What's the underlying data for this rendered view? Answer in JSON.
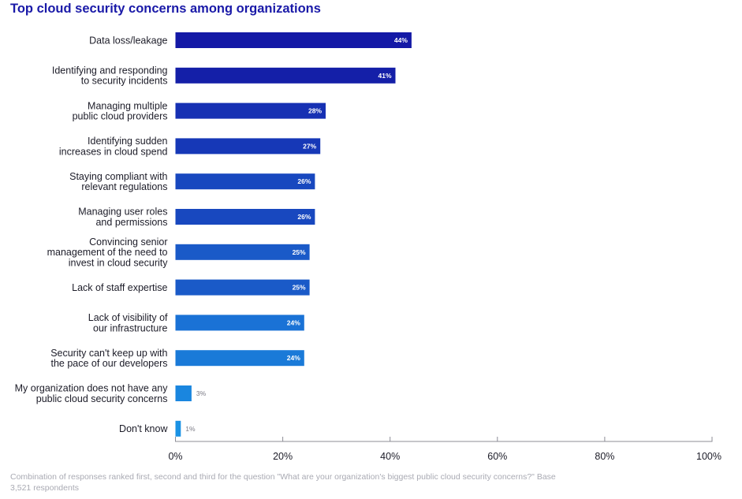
{
  "chart_data": {
    "type": "bar",
    "orientation": "horizontal",
    "title": "Top cloud security concerns among organizations",
    "categories": [
      "Data loss/leakage",
      "Identifying and responding\nto security incidents",
      "Managing multiple\npublic cloud providers",
      "Identifying sudden\nincreases in cloud spend",
      "Staying compliant with\nrelevant regulations",
      "Managing user roles\nand permissions",
      "Convincing senior\nmanagement of the need to\ninvest in cloud security",
      "Lack of staff expertise",
      "Lack of visibility of\nour infrastructure",
      "Security can't keep up with\nthe pace of our developers",
      "My organization does not have any\npublic cloud security concerns",
      "Don't know"
    ],
    "values": [
      44,
      41,
      28,
      27,
      26,
      26,
      25,
      25,
      24,
      24,
      3,
      1
    ],
    "value_labels": [
      "44%",
      "41%",
      "28%",
      "27%",
      "26%",
      "26%",
      "25%",
      "25%",
      "24%",
      "24%",
      "3%",
      "1%"
    ],
    "colors": [
      "#1419a6",
      "#141fa8",
      "#1630b3",
      "#1638b7",
      "#1848bf",
      "#1848bf",
      "#1a5ac8",
      "#1a5ac8",
      "#1a72d6",
      "#1a7ad8",
      "#1a86df",
      "#1a92e4"
    ],
    "xlim": [
      0,
      100
    ],
    "xticks": [
      0,
      20,
      40,
      60,
      80,
      100
    ],
    "xtick_labels": [
      "0%",
      "20%",
      "40%",
      "60%",
      "80%",
      "100%"
    ],
    "xlabel": "",
    "ylabel": "",
    "grid": false,
    "footnote": "Combination of responses ranked first, second and third for the question \"What are your organization's biggest public cloud security concerns?\" Base 3,521 respondents"
  }
}
